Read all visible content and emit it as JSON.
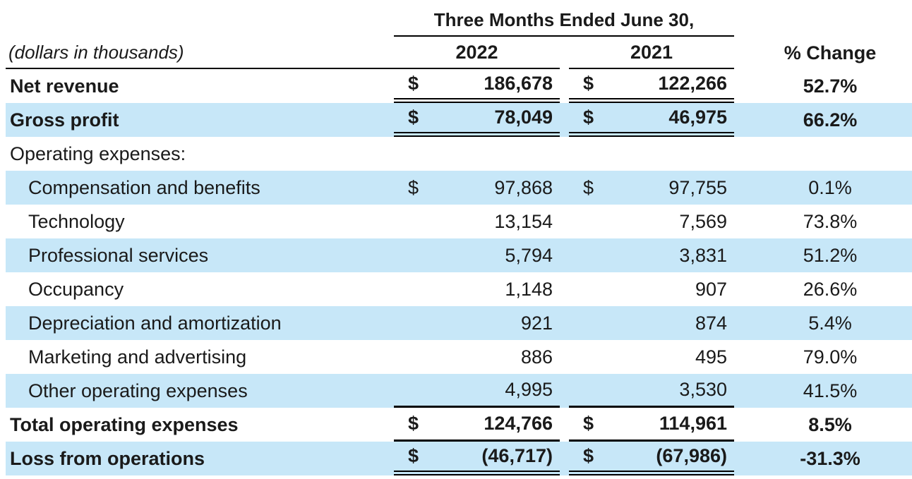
{
  "table": {
    "title": "Three Months Ended June 30,",
    "units_note": "(dollars in thousands)",
    "currency_symbol": "$",
    "columns": {
      "y2022": "2022",
      "y2021": "2021",
      "change": "% Change"
    },
    "rows": [
      {
        "label": "Net revenue",
        "dollar": true,
        "v2022": "186,678",
        "v2021": "122,266",
        "change": "52.7%",
        "bold": true,
        "shade": false,
        "indent": false,
        "rule": "double"
      },
      {
        "label": "Gross profit",
        "dollar": true,
        "v2022": "78,049",
        "v2021": "46,975",
        "change": "66.2%",
        "bold": true,
        "shade": true,
        "indent": false,
        "rule": "double"
      },
      {
        "label": "Operating expenses:",
        "dollar": false,
        "v2022": "",
        "v2021": "",
        "change": "",
        "bold": false,
        "shade": false,
        "indent": false,
        "rule": ""
      },
      {
        "label": "Compensation and benefits",
        "dollar": true,
        "v2022": "97,868",
        "v2021": "97,755",
        "change": "0.1%",
        "bold": false,
        "shade": true,
        "indent": true,
        "rule": ""
      },
      {
        "label": "Technology",
        "dollar": false,
        "v2022": "13,154",
        "v2021": "7,569",
        "change": "73.8%",
        "bold": false,
        "shade": false,
        "indent": true,
        "rule": ""
      },
      {
        "label": "Professional services",
        "dollar": false,
        "v2022": "5,794",
        "v2021": "3,831",
        "change": "51.2%",
        "bold": false,
        "shade": true,
        "indent": true,
        "rule": ""
      },
      {
        "label": "Occupancy",
        "dollar": false,
        "v2022": "1,148",
        "v2021": "907",
        "change": "26.6%",
        "bold": false,
        "shade": false,
        "indent": true,
        "rule": ""
      },
      {
        "label": "Depreciation and amortization",
        "dollar": false,
        "v2022": "921",
        "v2021": "874",
        "change": "5.4%",
        "bold": false,
        "shade": true,
        "indent": true,
        "rule": ""
      },
      {
        "label": "Marketing and advertising",
        "dollar": false,
        "v2022": "886",
        "v2021": "495",
        "change": "79.0%",
        "bold": false,
        "shade": false,
        "indent": true,
        "rule": ""
      },
      {
        "label": "Other operating expenses",
        "dollar": false,
        "v2022": "4,995",
        "v2021": "3,530",
        "change": "41.5%",
        "bold": false,
        "shade": true,
        "indent": true,
        "rule": "single"
      },
      {
        "label": "Total operating expenses",
        "dollar": true,
        "v2022": "124,766",
        "v2021": "114,961",
        "change": "8.5%",
        "bold": true,
        "shade": false,
        "indent": false,
        "rule": "single"
      },
      {
        "label": "Loss from operations",
        "dollar": true,
        "v2022": "(46,717)",
        "v2021": "(67,986)",
        "change": "-31.3%",
        "bold": true,
        "shade": true,
        "indent": false,
        "rule": "double"
      }
    ]
  },
  "colors": {
    "row_shade": "#c7e7f8",
    "text": "#1a1a1a",
    "rule": "#000000"
  }
}
